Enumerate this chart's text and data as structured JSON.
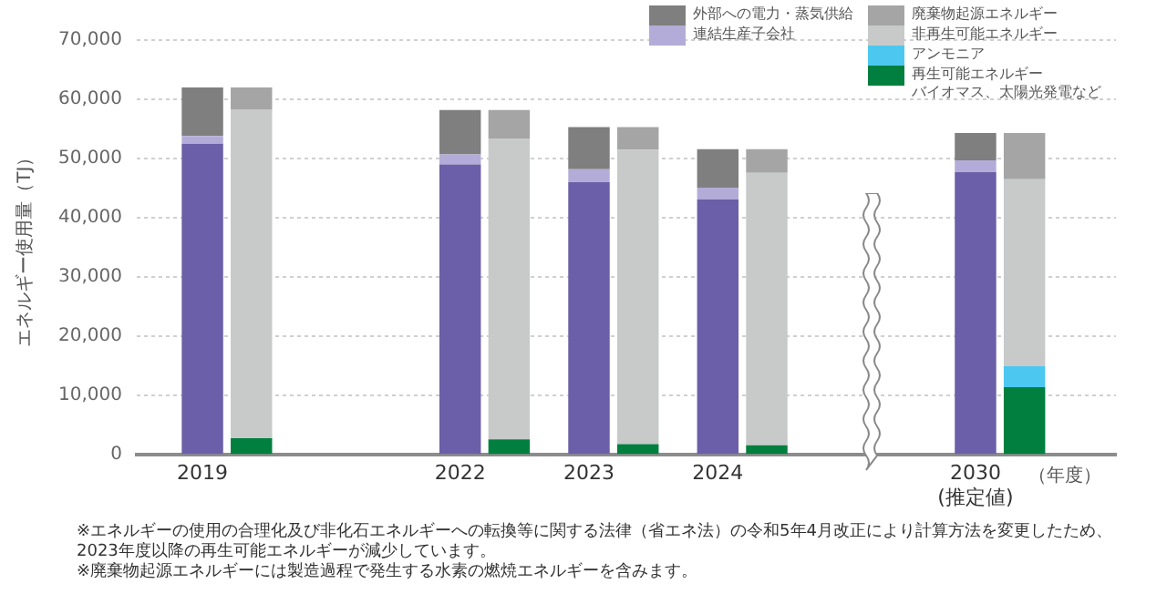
{
  "chart_data": {
    "type": "bar",
    "stacked": true,
    "ylabel": "エネルギー使用量（TJ）",
    "xlabel": "（年度）",
    "categories": [
      "2019",
      null,
      null,
      null,
      "2022",
      null,
      "2023",
      null,
      "2024",
      null,
      null,
      null,
      "2030\n(推定値)",
      null
    ],
    "ylim": [
      0,
      70000
    ],
    "yticks": [
      {
        "value": 0,
        "label": "0"
      },
      {
        "value": 10000,
        "label": "10,000"
      },
      {
        "value": 20000,
        "label": "20,000"
      },
      {
        "value": 30000,
        "label": "30,000"
      },
      {
        "value": 40000,
        "label": "40,000"
      },
      {
        "value": 50000,
        "label": "50,000"
      },
      {
        "value": 60000,
        "label": "60,000"
      },
      {
        "value": 70000,
        "label": "70,000"
      }
    ],
    "grid": "y",
    "legend": "top right",
    "series": [
      {
        "color": "#6a5fa8",
        "values": [
          52500,
          null,
          null,
          null,
          49000,
          null,
          46000,
          null,
          43100,
          null,
          null,
          null,
          47700,
          null
        ]
      },
      {
        "name": "連結生産子会社",
        "color": "#b4acd8",
        "values": [
          1300,
          null,
          null,
          null,
          1700,
          null,
          2200,
          null,
          2000,
          null,
          null,
          null,
          2000,
          null
        ]
      },
      {
        "name": "外部への電力・蒸気供給",
        "color": "#7f7f7f",
        "values": [
          8200,
          null,
          null,
          null,
          7500,
          null,
          7100,
          null,
          6500,
          null,
          null,
          null,
          4600,
          null
        ]
      },
      {
        "name": "再生可能エネルギーバイオマス、太陽光発電など",
        "color": "#007f3e",
        "values": [
          null,
          2800,
          null,
          null,
          null,
          2600,
          null,
          1800,
          null,
          1600,
          null,
          null,
          null,
          11400
        ]
      },
      {
        "name": "アンモニア",
        "color": "#4cc8f0",
        "values": [
          null,
          null,
          null,
          null,
          null,
          null,
          null,
          null,
          null,
          null,
          null,
          null,
          null,
          3600
        ]
      },
      {
        "name": "非再生可能エネルギー",
        "color": "#c8c9c9",
        "values": [
          null,
          55500,
          null,
          null,
          null,
          50800,
          null,
          49700,
          null,
          46000,
          null,
          null,
          null,
          31500
        ]
      },
      {
        "name": "廃棄物起源エネルギー",
        "color": "#a5a5a5",
        "values": [
          null,
          3700,
          null,
          null,
          null,
          4800,
          null,
          3800,
          null,
          4000,
          null,
          null,
          null,
          7800
        ]
      }
    ],
    "annotations": [
      "※エネルギーの使用の合理化及び非化石エネルギーへの転換等に関する法律（省エネ法）の令和5年4月改正により計算方法を変更したため、\n2023年度以降の再生可能エネルギーが減少しています。",
      "※廃棄物起源エネルギーには製造過程で発生する水素の燃焼エネルギーを含みます。"
    ]
  }
}
